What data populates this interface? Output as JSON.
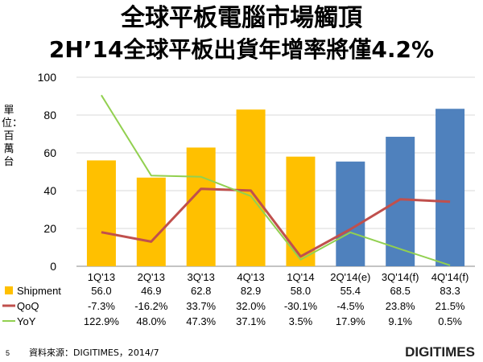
{
  "header": {
    "title_line1": "全球平板電腦市場觸頂",
    "title_line2": "2H’14全球平板出貨年增率將僅4.2%"
  },
  "chart_data": {
    "type": "bar",
    "categories": [
      "1Q'13",
      "2Q'13",
      "3Q'13",
      "4Q'13",
      "1Q'14",
      "2Q'14(e)",
      "3Q'14(f)",
      "4Q'14(f)"
    ],
    "ylabel": "單位：百萬台",
    "ylim": [
      0,
      100
    ],
    "yticks": [
      0,
      20,
      40,
      60,
      80,
      100
    ],
    "grid": true,
    "bar_colors": [
      "#FFC000",
      "#FFC000",
      "#FFC000",
      "#FFC000",
      "#FFC000",
      "#4F81BD",
      "#4F81BD",
      "#4F81BD"
    ],
    "series": [
      {
        "name": "Shipment",
        "kind": "bar",
        "color": "#FFC000",
        "values": [
          56.0,
          46.9,
          62.8,
          82.9,
          58.0,
          55.4,
          68.5,
          83.3
        ],
        "labels": [
          "56.0",
          "46.9",
          "62.8",
          "82.9",
          "58.0",
          "55.4",
          "68.5",
          "83.3"
        ]
      },
      {
        "name": "QoQ",
        "kind": "line",
        "color": "#C0504D",
        "values": [
          -7.3,
          -16.2,
          33.7,
          32.0,
          -30.1,
          -4.5,
          23.8,
          21.5
        ],
        "labels": [
          "-7.3%",
          "-16.2%",
          "33.7%",
          "32.0%",
          "-30.1%",
          "-4.5%",
          "23.8%",
          "21.5%"
        ]
      },
      {
        "name": "YoY",
        "kind": "line",
        "color": "#92D050",
        "values": [
          122.9,
          48.0,
          47.3,
          37.1,
          3.5,
          17.9,
          9.1,
          0.5
        ],
        "labels": [
          "122.9%",
          "48.0%",
          "47.3%",
          "37.1%",
          "3.5%",
          "17.9%",
          "9.1%",
          "0.5%"
        ]
      }
    ]
  },
  "footer": {
    "page_number": "5",
    "source": "資料來源：DIGITIMES，2014/7",
    "logo": "DIGITIMES"
  }
}
